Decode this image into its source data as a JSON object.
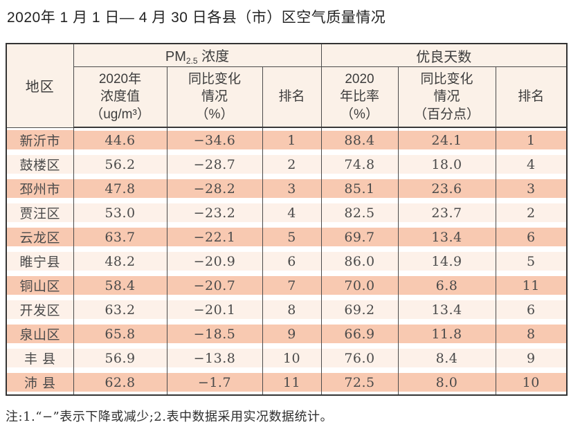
{
  "page": {
    "title": "2020年 1 月 1 日— 4 月 30 日各县（市）区空气质量情况",
    "note": "注:1.“−”表示下降或减少;2.表中数据采用实况数据统计。"
  },
  "colors": {
    "row_salmon": "#f8c9b1",
    "row_light": "#fdf1e9",
    "header_bg": "#fbf1e8",
    "grid_line": "#4a4a4a",
    "outer_border": "#333333",
    "body_text": "#4a4a4a"
  },
  "table": {
    "region_header": "地区",
    "groups": {
      "pm": {
        "prefix": "PM",
        "sub": "2.5",
        "suffix": " 浓度"
      },
      "good_days": {
        "label": "优良天数"
      }
    },
    "sub_headers": {
      "pm_value": "2020年\n浓度值\n（ug/m³）",
      "pm_change": "同比变化\n情况\n（%）",
      "pm_rank": "排名",
      "good_ratio": "2020\n年比率\n（%）",
      "good_change": "同比变化\n情况\n（百分点）",
      "good_rank": "排名"
    },
    "rows": [
      {
        "region": "新沂市",
        "cells": [
          "44.6",
          "−34.6",
          "1",
          "88.4",
          "24.1",
          "1"
        ]
      },
      {
        "region": "鼓楼区",
        "cells": [
          "56.2",
          "−28.7",
          "2",
          "74.8",
          "18.0",
          "4"
        ]
      },
      {
        "region": "邳州市",
        "cells": [
          "47.8",
          "−28.2",
          "3",
          "85.1",
          "23.6",
          "3"
        ]
      },
      {
        "region": "贾汪区",
        "cells": [
          "53.0",
          "−23.2",
          "4",
          "82.5",
          "23.7",
          "2"
        ]
      },
      {
        "region": "云龙区",
        "cells": [
          "63.7",
          "−22.1",
          "5",
          "69.7",
          "13.4",
          "6"
        ]
      },
      {
        "region": "睢宁县",
        "cells": [
          "48.2",
          "−20.9",
          "6",
          "86.0",
          "14.9",
          "5"
        ]
      },
      {
        "region": "铜山区",
        "cells": [
          "58.4",
          "−20.7",
          "7",
          "70.0",
          "6.8",
          "11"
        ]
      },
      {
        "region": "开发区",
        "cells": [
          "63.2",
          "−20.1",
          "8",
          "69.2",
          "13.4",
          "6"
        ]
      },
      {
        "region": "泉山区",
        "cells": [
          "65.8",
          "−18.5",
          "9",
          "66.9",
          "11.8",
          "8"
        ]
      },
      {
        "region": "丰 县",
        "cells": [
          "56.9",
          "−13.8",
          "10",
          "76.0",
          "8.4",
          "9"
        ]
      },
      {
        "region": "沛 县",
        "cells": [
          "62.8",
          "−1.7",
          "11",
          "72.5",
          "8.0",
          "10"
        ]
      }
    ]
  }
}
